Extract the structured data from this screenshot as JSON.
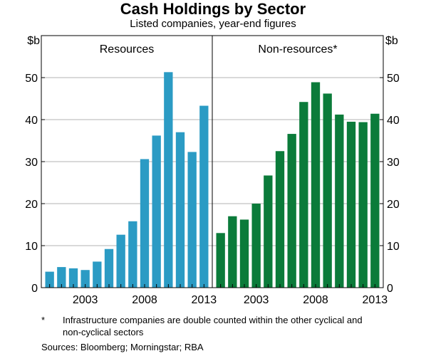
{
  "title": "Cash Holdings by Sector",
  "subtitle": "Listed companies, year-end figures",
  "footnote": {
    "marker": "*",
    "text": "Infrastructure companies are double counted within the other cyclical and non-cyclical sectors"
  },
  "sources": "Sources:  Bloomberg; Morningstar; RBA",
  "chart_data": [
    {
      "type": "bar",
      "panel_title": "Resources",
      "color": "#2B9BC4",
      "categories": [
        2000,
        2001,
        2002,
        2003,
        2004,
        2005,
        2006,
        2007,
        2008,
        2009,
        2010,
        2011,
        2012,
        2013
      ],
      "values": [
        3.8,
        4.9,
        4.6,
        4.2,
        6.2,
        9.2,
        12.6,
        15.8,
        30.6,
        36.2,
        51.3,
        37.0,
        32.3,
        43.3
      ],
      "x_tick_labels": [
        "2003",
        "2008",
        "2013"
      ],
      "ylabel": "$b",
      "ylim": [
        0,
        60
      ],
      "y_ticks": [
        0,
        10,
        20,
        30,
        40,
        50
      ],
      "grid": true
    },
    {
      "type": "bar",
      "panel_title": "Non-resources*",
      "color": "#0B7B3A",
      "categories": [
        2000,
        2001,
        2002,
        2003,
        2004,
        2005,
        2006,
        2007,
        2008,
        2009,
        2010,
        2011,
        2012,
        2013
      ],
      "values": [
        13.0,
        17.0,
        16.2,
        20.0,
        26.7,
        32.5,
        36.6,
        44.2,
        48.9,
        46.2,
        41.2,
        39.5,
        39.4,
        41.4
      ],
      "x_tick_labels": [
        "2003",
        "2008",
        "2013"
      ],
      "ylabel": "$b",
      "ylim": [
        0,
        60
      ],
      "y_ticks": [
        0,
        10,
        20,
        30,
        40,
        50
      ],
      "grid": true
    }
  ]
}
